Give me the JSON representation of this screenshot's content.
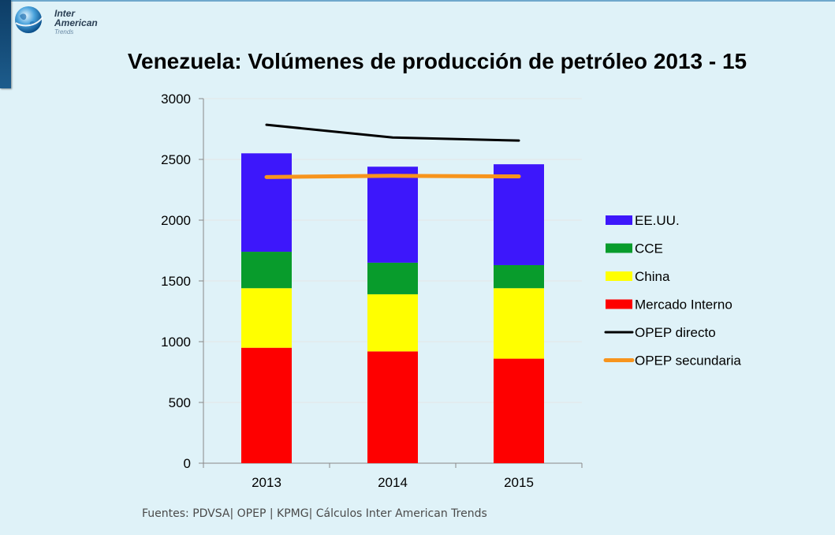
{
  "logo": {
    "line1": "Inter",
    "line2": "American",
    "line3": "Trends"
  },
  "title": "Venezuela: Volúmenes de producción de petróleo 2013 - 15",
  "source": "Fuentes: PDVSA| OPEP | KPMG| Cálculos Inter American Trends",
  "chart_data": {
    "type": "bar",
    "stacked": true,
    "categories": [
      "2013",
      "2014",
      "2015"
    ],
    "ylim": [
      0,
      3000
    ],
    "yticks": [
      0,
      500,
      1000,
      1500,
      2000,
      2500,
      3000
    ],
    "grid": true,
    "legend_position": "right",
    "series": [
      {
        "name": "Mercado Interno",
        "color": "#fe0000",
        "values": [
          950,
          920,
          860
        ]
      },
      {
        "name": "China",
        "color": "#ffff00",
        "values": [
          490,
          470,
          580
        ]
      },
      {
        "name": "CCE",
        "color": "#089c2c",
        "values": [
          300,
          260,
          190
        ]
      },
      {
        "name": "EE.UU.",
        "color": "#3d17fb",
        "values": [
          810,
          790,
          830
        ]
      }
    ],
    "lines": [
      {
        "name": "OPEP directo",
        "color": "#000000",
        "values": [
          2785,
          2680,
          2655
        ]
      },
      {
        "name": "OPEP secundaria",
        "color": "#f7941d",
        "values": [
          2355,
          2365,
          2360
        ]
      }
    ],
    "legend_order": [
      "EE.UU.",
      "CCE",
      "China",
      "Mercado Interno",
      "OPEP directo",
      "OPEP secundaria"
    ]
  }
}
